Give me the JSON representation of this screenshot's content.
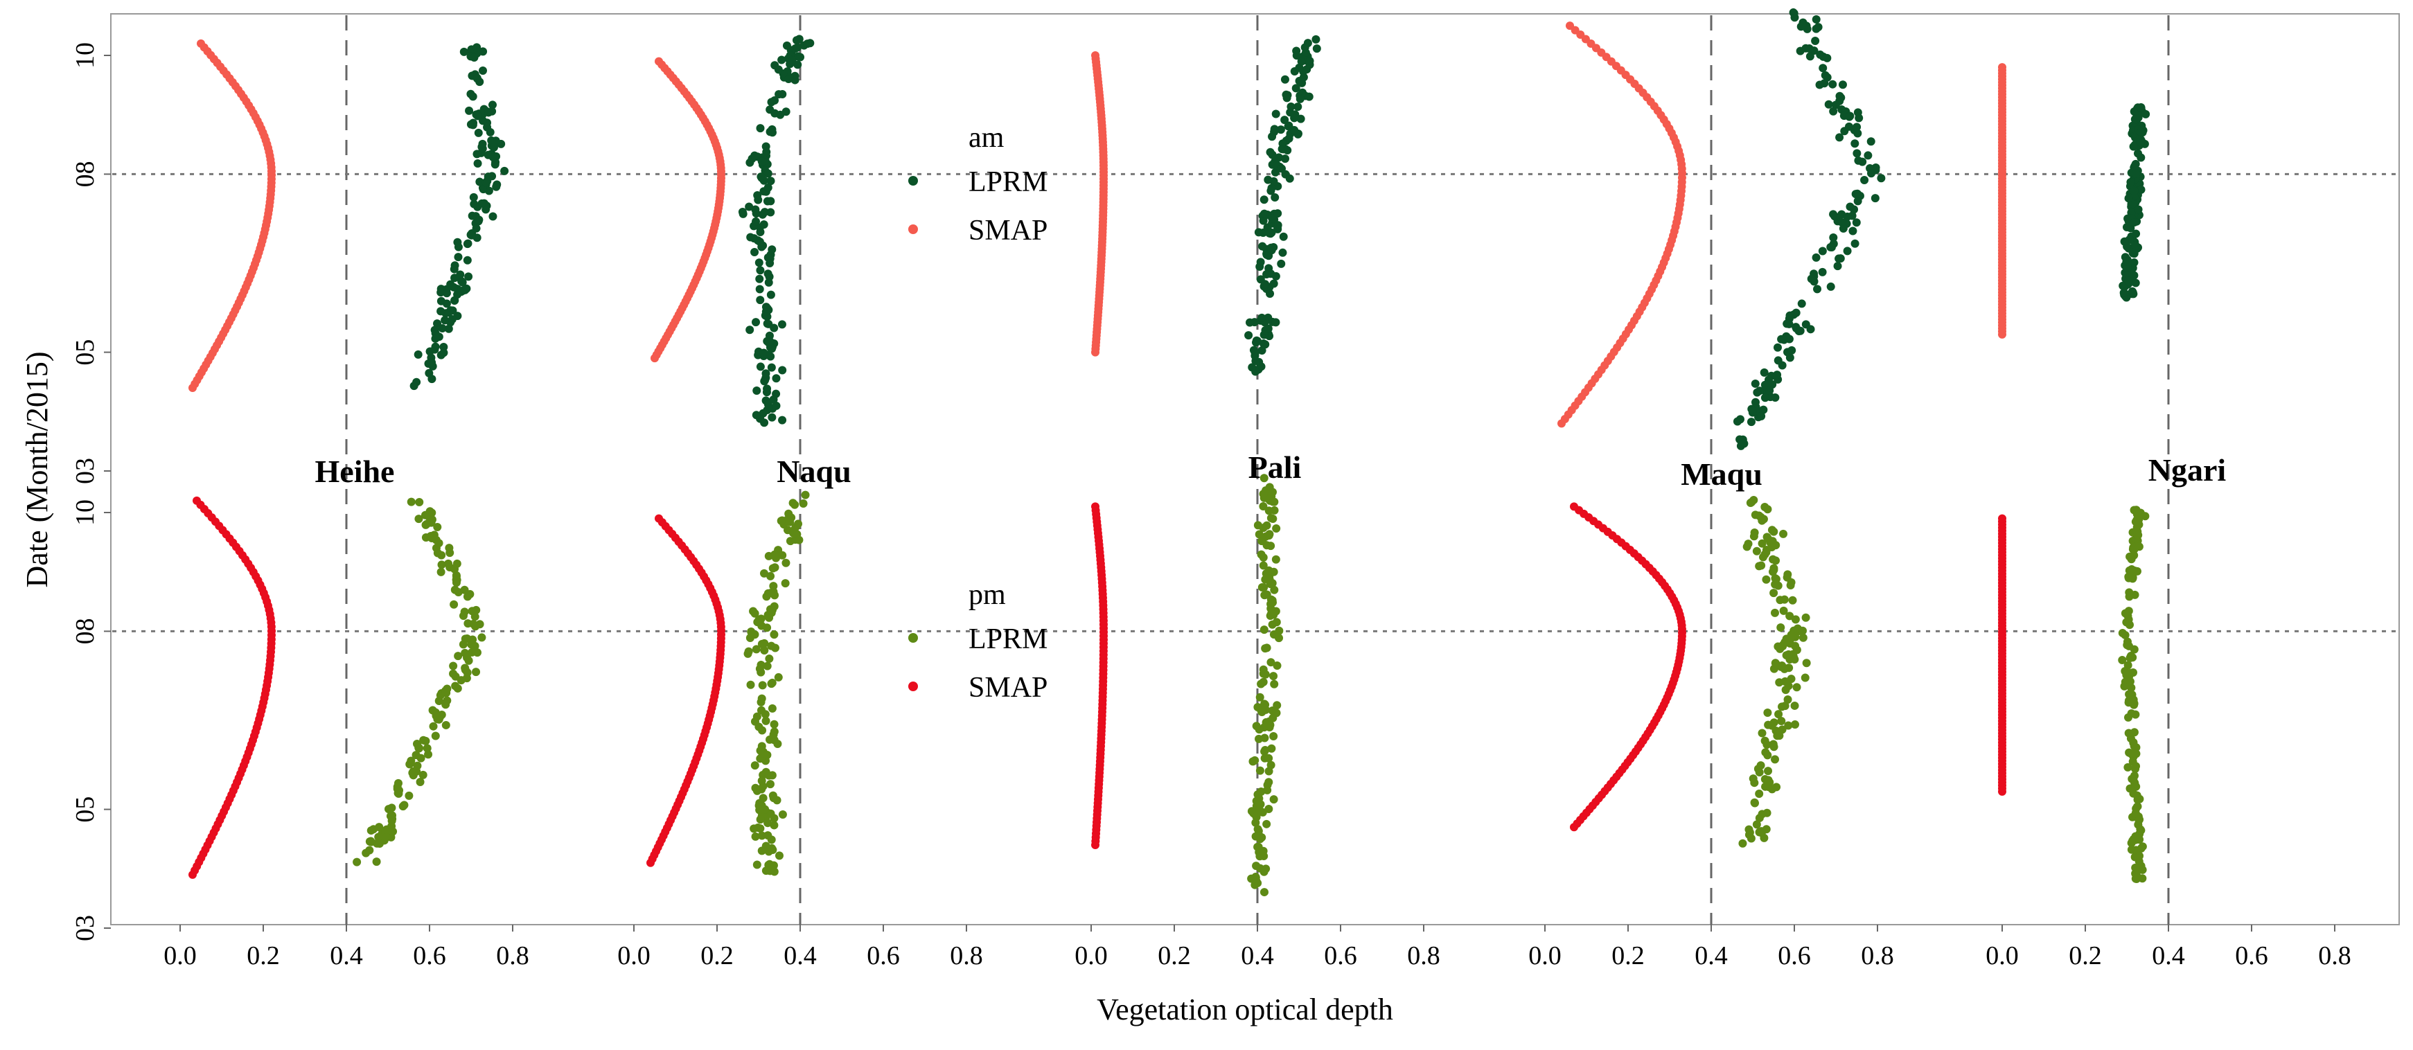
{
  "chart_data": {
    "type": "scatter",
    "xlabel": "Vegetation optical depth",
    "ylabel": "Date (Month/2015)",
    "x_ticks": [
      "0.0",
      "0.2",
      "0.4",
      "0.6",
      "0.8"
    ],
    "x_range_per_site": [
      -0.1,
      0.95
    ],
    "y_ticks": [
      "03",
      "05",
      "08",
      "10"
    ],
    "y_tick_months": [
      3,
      5,
      8,
      10
    ],
    "y_range_months": [
      3,
      10.7
    ],
    "reference_lines": {
      "vertical_x": 0.4,
      "horizontal_month": 8
    },
    "sites": [
      "Heihe",
      "Naqu",
      "Pali",
      "Maqu",
      "Ngari"
    ],
    "panels": [
      {
        "name": "am",
        "legend": {
          "title": "am",
          "entries": [
            "LPRM",
            "SMAP"
          ]
        },
        "colors": {
          "LPRM": "#0b5328",
          "SMAP": "#f45a4e"
        },
        "smap_curves": [
          {
            "site": "Heihe",
            "start": 4.4,
            "end": 10.2,
            "x_start": 0.03,
            "x_peak": 0.22,
            "x_end": 0.05
          },
          {
            "site": "Naqu",
            "start": 4.9,
            "end": 9.9,
            "x_start": 0.05,
            "x_peak": 0.21,
            "x_end": 0.06
          },
          {
            "site": "Pali",
            "start": 5.0,
            "end": 10.0,
            "x_start": 0.01,
            "x_peak": 0.03,
            "x_end": 0.01
          },
          {
            "site": "Maqu",
            "start": 3.8,
            "end": 10.5,
            "x_start": 0.04,
            "x_peak": 0.33,
            "x_end": 0.06
          },
          {
            "site": "Ngari",
            "start": 5.3,
            "end": 9.8,
            "x_start": 0.0,
            "x_peak": 0.0,
            "x_end": 0.0
          }
        ],
        "lprm_clouds": [
          {
            "site": "Heihe",
            "start": 4.4,
            "end": 10.2,
            "x_start": 0.58,
            "x_mid": 0.75,
            "x_end": 0.7,
            "spread": 0.045
          },
          {
            "site": "Naqu",
            "start": 3.8,
            "end": 10.4,
            "x_start": 0.33,
            "x_mid": 0.3,
            "x_end": 0.4,
            "spread": 0.05
          },
          {
            "site": "Pali",
            "start": 4.5,
            "end": 10.3,
            "x_start": 0.4,
            "x_mid": 0.45,
            "x_end": 0.52,
            "spread": 0.045
          },
          {
            "site": "Maqu",
            "start": 3.4,
            "end": 10.8,
            "x_start": 0.46,
            "x_mid": 0.78,
            "x_end": 0.61,
            "spread": 0.055
          },
          {
            "site": "Ngari",
            "start": 5.9,
            "end": 9.2,
            "x_start": 0.3,
            "x_mid": 0.32,
            "x_end": 0.33,
            "spread": 0.025
          }
        ]
      },
      {
        "name": "pm",
        "legend": {
          "title": "pm",
          "entries": [
            "LPRM",
            "SMAP"
          ]
        },
        "colors": {
          "LPRM": "#5e8a15",
          "SMAP": "#e80d1e"
        },
        "smap_curves": [
          {
            "site": "Heihe",
            "start": 3.9,
            "end": 10.2,
            "x_start": 0.03,
            "x_peak": 0.22,
            "x_end": 0.04
          },
          {
            "site": "Naqu",
            "start": 4.1,
            "end": 9.9,
            "x_start": 0.04,
            "x_peak": 0.21,
            "x_end": 0.06
          },
          {
            "site": "Pali",
            "start": 4.4,
            "end": 10.1,
            "x_start": 0.01,
            "x_peak": 0.03,
            "x_end": 0.01
          },
          {
            "site": "Maqu",
            "start": 4.7,
            "end": 10.1,
            "x_start": 0.07,
            "x_peak": 0.33,
            "x_end": 0.07
          },
          {
            "site": "Ngari",
            "start": 5.3,
            "end": 9.9,
            "x_start": 0.0,
            "x_peak": 0.0,
            "x_end": 0.0
          }
        ],
        "lprm_clouds": [
          {
            "site": "Heihe",
            "start": 4.1,
            "end": 10.2,
            "x_start": 0.45,
            "x_mid": 0.72,
            "x_end": 0.57,
            "spread": 0.045
          },
          {
            "site": "Naqu",
            "start": 3.9,
            "end": 10.3,
            "x_start": 0.33,
            "x_mid": 0.3,
            "x_end": 0.4,
            "spread": 0.05
          },
          {
            "site": "Pali",
            "start": 3.6,
            "end": 10.6,
            "x_start": 0.4,
            "x_mid": 0.43,
            "x_end": 0.43,
            "spread": 0.04
          },
          {
            "site": "Maqu",
            "start": 4.4,
            "end": 10.3,
            "x_start": 0.5,
            "x_mid": 0.6,
            "x_end": 0.5,
            "spread": 0.06
          },
          {
            "site": "Ngari",
            "start": 3.8,
            "end": 10.1,
            "x_start": 0.33,
            "x_mid": 0.3,
            "x_end": 0.33,
            "spread": 0.02
          }
        ]
      }
    ]
  }
}
